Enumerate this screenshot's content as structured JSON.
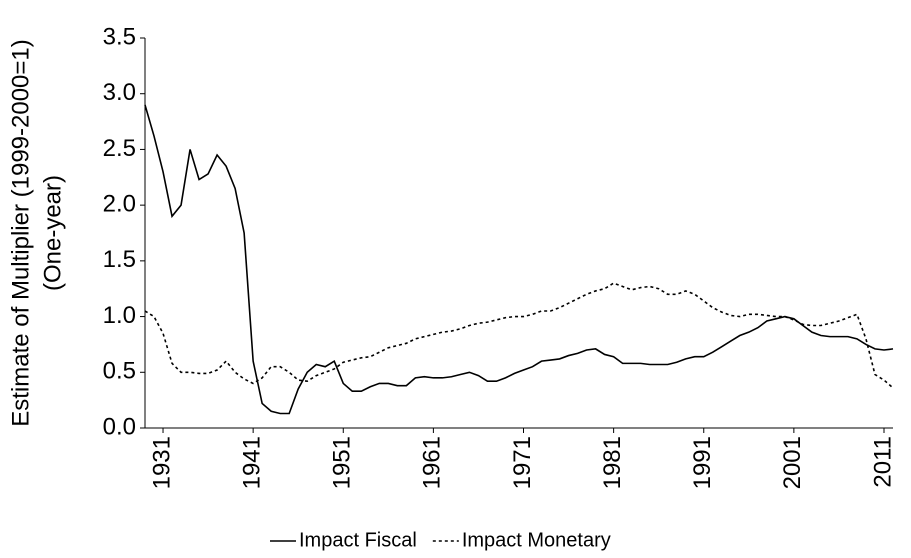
{
  "chart_data": {
    "type": "line",
    "ylabel": [
      "Estimate of Multiplier (1999-2000=1)",
      "(One-year)"
    ],
    "x": [
      1929,
      1930,
      1931,
      1932,
      1933,
      1934,
      1935,
      1936,
      1937,
      1938,
      1939,
      1940,
      1941,
      1942,
      1943,
      1944,
      1945,
      1946,
      1947,
      1948,
      1949,
      1950,
      1951,
      1952,
      1953,
      1954,
      1955,
      1956,
      1957,
      1958,
      1959,
      1960,
      1961,
      1962,
      1963,
      1964,
      1965,
      1966,
      1967,
      1968,
      1969,
      1970,
      1971,
      1972,
      1973,
      1974,
      1975,
      1976,
      1977,
      1978,
      1979,
      1980,
      1981,
      1982,
      1983,
      1984,
      1985,
      1986,
      1987,
      1988,
      1989,
      1990,
      1991,
      1992,
      1993,
      1994,
      1995,
      1996,
      1997,
      1998,
      1999,
      2000,
      2001,
      2002,
      2003,
      2004,
      2005,
      2006,
      2007,
      2008,
      2009,
      2010,
      2011,
      2012
    ],
    "series": [
      {
        "name": "Impact Fiscal",
        "color": "#000000",
        "style": "solid",
        "values": [
          2.9,
          2.62,
          2.3,
          1.9,
          2.0,
          2.5,
          2.23,
          2.28,
          2.45,
          2.35,
          2.15,
          1.75,
          0.6,
          0.22,
          0.15,
          0.13,
          0.13,
          0.35,
          0.5,
          0.57,
          0.55,
          0.6,
          0.4,
          0.33,
          0.33,
          0.37,
          0.4,
          0.4,
          0.38,
          0.38,
          0.45,
          0.46,
          0.45,
          0.45,
          0.46,
          0.48,
          0.5,
          0.47,
          0.42,
          0.42,
          0.45,
          0.49,
          0.52,
          0.55,
          0.6,
          0.61,
          0.62,
          0.65,
          0.67,
          0.7,
          0.71,
          0.66,
          0.64,
          0.58,
          0.58,
          0.58,
          0.57,
          0.57,
          0.57,
          0.59,
          0.62,
          0.64,
          0.64,
          0.68,
          0.73,
          0.78,
          0.83,
          0.86,
          0.9,
          0.96,
          0.98,
          1.0,
          0.98,
          0.92,
          0.86,
          0.83,
          0.82,
          0.82,
          0.82,
          0.8,
          0.75,
          0.71,
          0.7,
          0.71
        ]
      },
      {
        "name": "Impact Monetary",
        "color": "#000000",
        "style": "dotted",
        "values": [
          1.05,
          1.0,
          0.85,
          0.58,
          0.5,
          0.5,
          0.49,
          0.49,
          0.52,
          0.6,
          0.5,
          0.44,
          0.4,
          0.45,
          0.55,
          0.55,
          0.5,
          0.43,
          0.42,
          0.47,
          0.5,
          0.53,
          0.59,
          0.61,
          0.63,
          0.64,
          0.68,
          0.72,
          0.74,
          0.76,
          0.8,
          0.82,
          0.84,
          0.86,
          0.87,
          0.89,
          0.92,
          0.94,
          0.95,
          0.97,
          0.99,
          1.0,
          1.0,
          1.02,
          1.05,
          1.05,
          1.08,
          1.12,
          1.16,
          1.2,
          1.23,
          1.25,
          1.3,
          1.27,
          1.24,
          1.26,
          1.27,
          1.25,
          1.2,
          1.2,
          1.23,
          1.2,
          1.14,
          1.08,
          1.04,
          1.01,
          1.0,
          1.02,
          1.02,
          1.01,
          1.0,
          1.0,
          0.97,
          0.93,
          0.92,
          0.92,
          0.94,
          0.96,
          0.99,
          1.02,
          0.8,
          0.48,
          0.43,
          0.36
        ]
      }
    ],
    "xlim": [
      1929,
      2012
    ],
    "xticks": [
      1931,
      1941,
      1951,
      1961,
      1971,
      1981,
      1991,
      2001,
      2011
    ],
    "ylim": [
      0,
      3.5
    ],
    "yticks": [
      {
        "value": 0,
        "label": "0.0"
      },
      0.5,
      {
        "value": 1,
        "label": "1.0"
      },
      1.5,
      {
        "value": 2,
        "label": "2.0"
      },
      2.5,
      {
        "value": 3,
        "label": "3.0"
      },
      3.5
    ],
    "grid": false,
    "legend": "bottom"
  }
}
